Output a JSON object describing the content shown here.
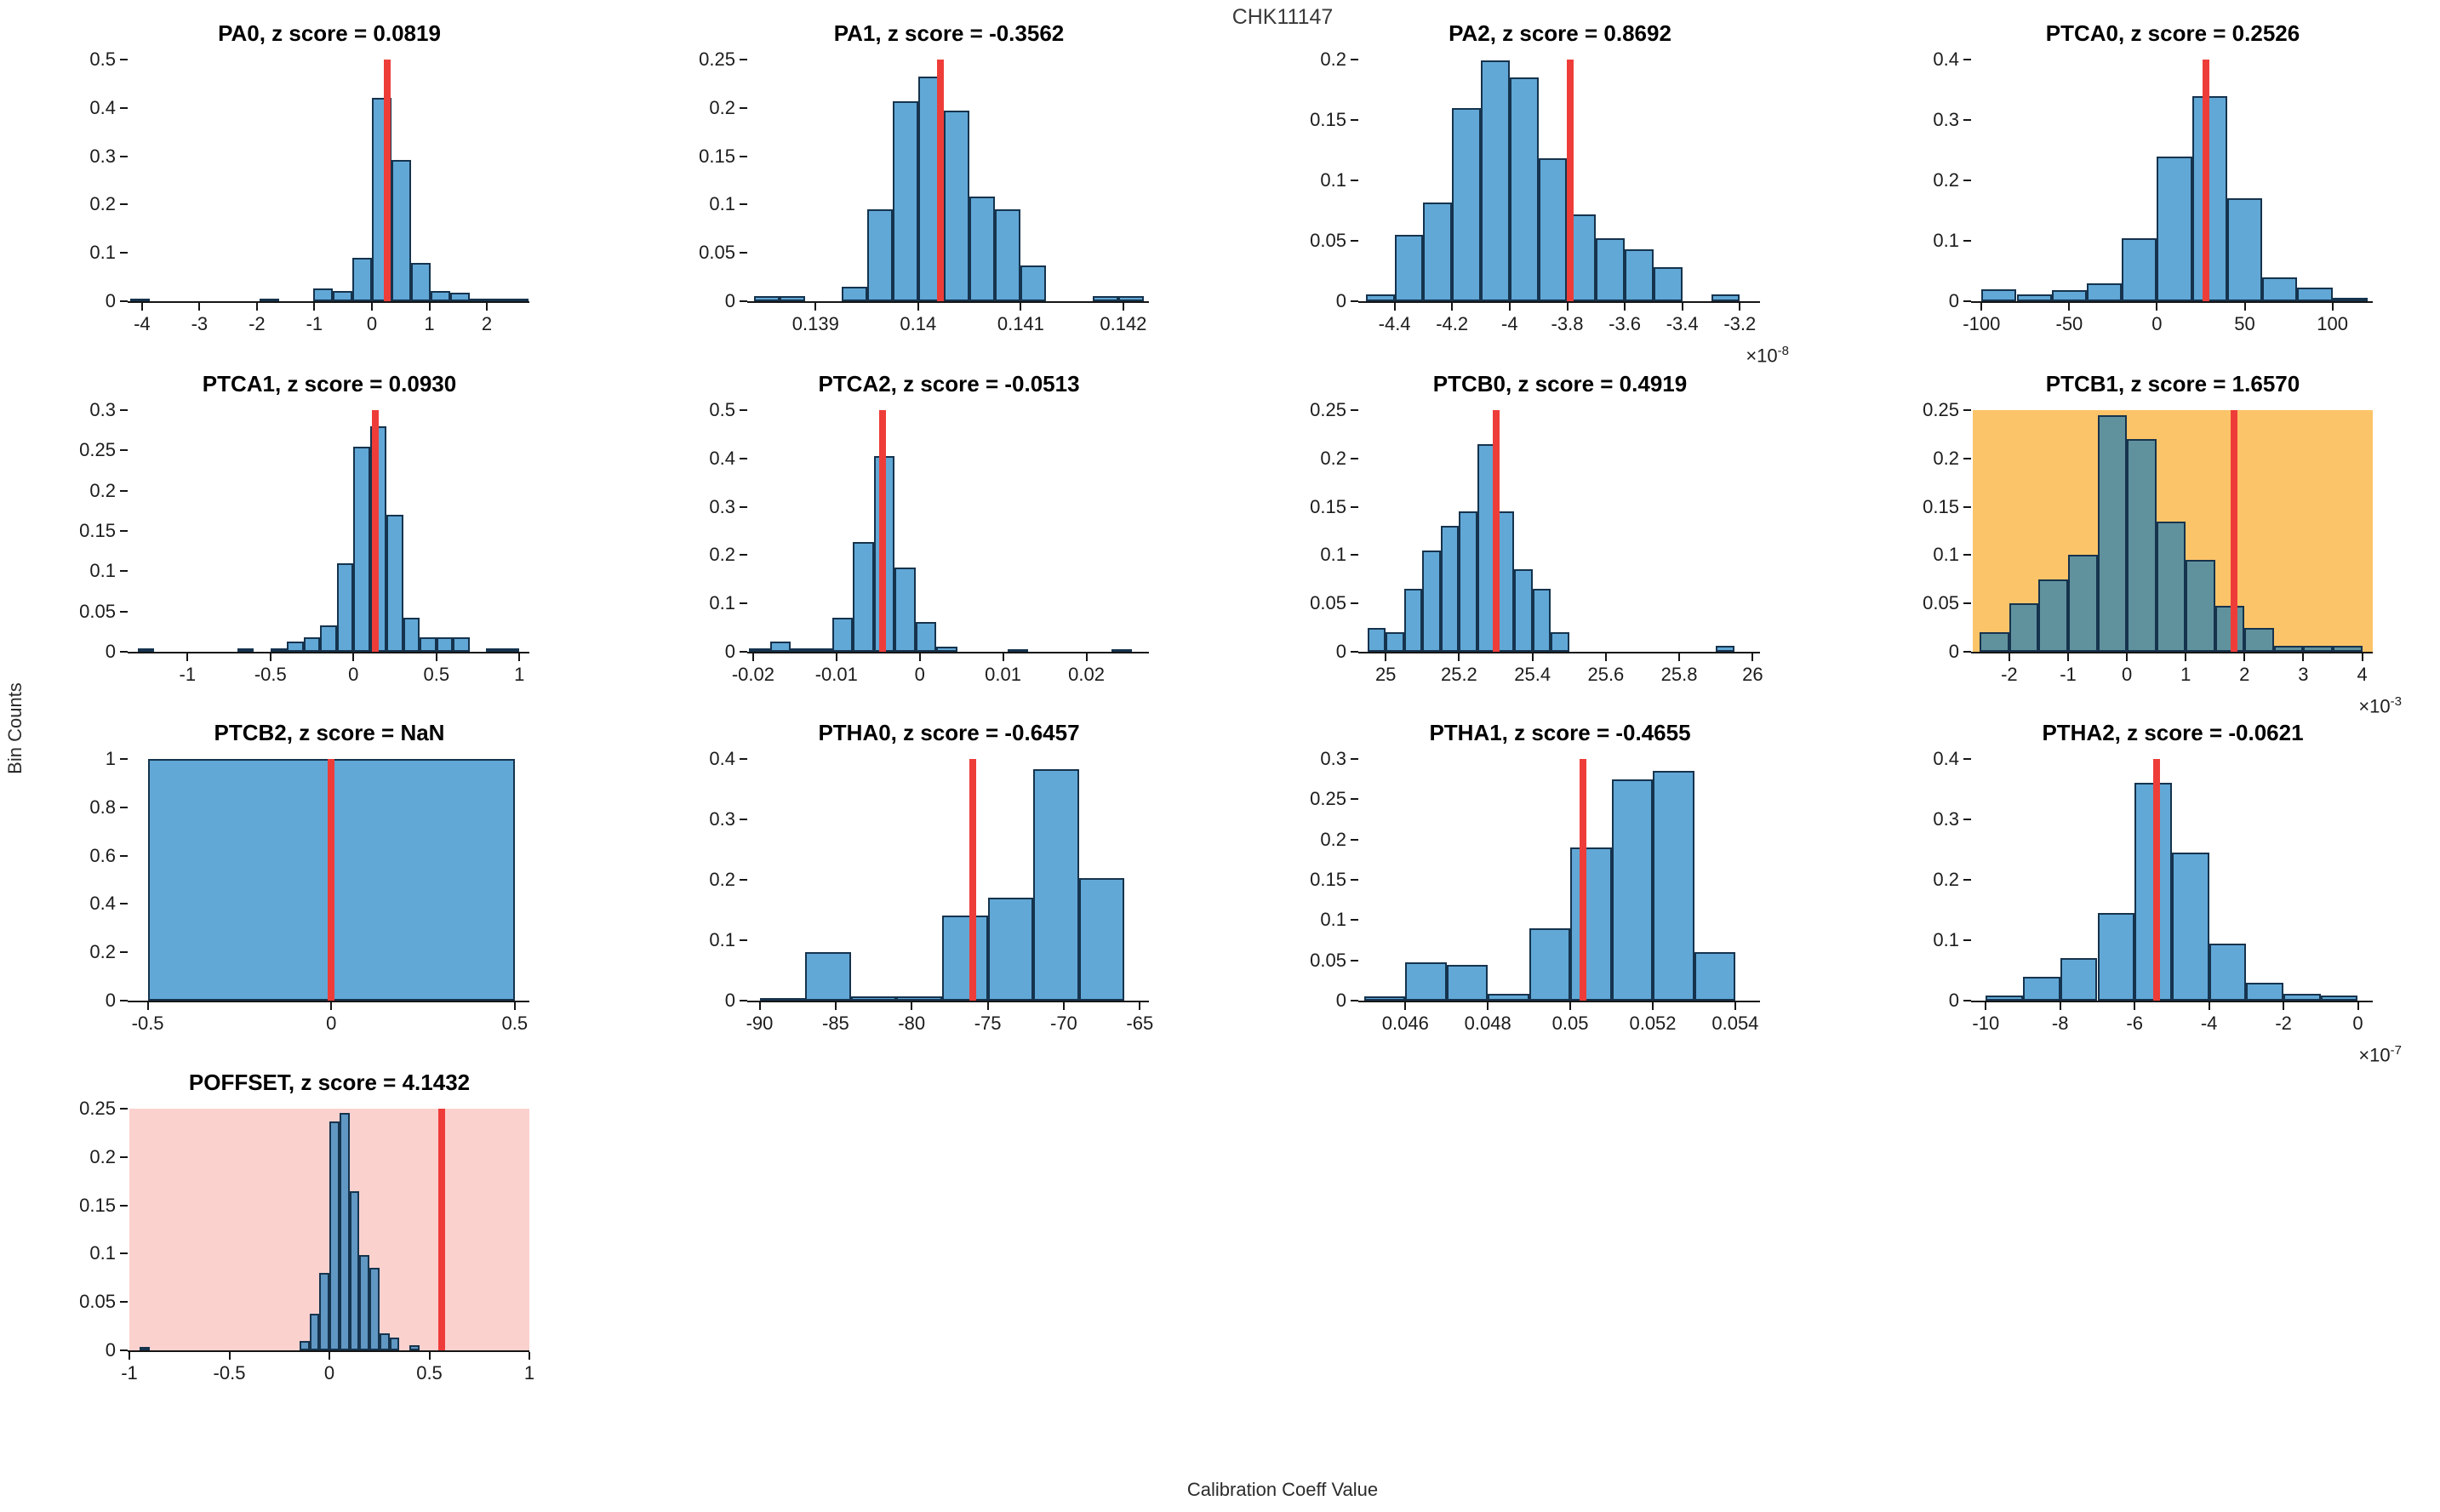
{
  "figure": {
    "title": "CHK11147",
    "xlabel": "Calibration Coeff Value",
    "ylabel": "Bin Counts"
  },
  "colors": {
    "bar_fill": "rgba(0,114,189,0.62)",
    "bar_edge": "#16334d",
    "marker_red": "#ee3d39",
    "warn_background": "#fcc469",
    "alert_background": "#fbd1ce",
    "axis": "#151515",
    "tick_text": "#1c1c1c"
  },
  "chart_data": [
    {
      "type": "histogram",
      "name": "PA0",
      "title": "PA0, z score = 0.0819",
      "z_score": "0.0819",
      "grid": [
        0,
        0
      ],
      "background": null,
      "xlim": [
        -4.22,
        2.74
      ],
      "ylim": [
        0,
        0.5
      ],
      "xticks": [
        -4,
        -3,
        -2,
        -1,
        0,
        1,
        2
      ],
      "xtick_labels": [
        "-4",
        "-3",
        "-2",
        "-1",
        "0",
        "1",
        "2"
      ],
      "yticks": [
        0,
        0.1,
        0.2,
        0.3,
        0.4,
        0.5
      ],
      "ytick_labels": [
        "0",
        "0.1",
        "0.2",
        "0.3",
        "0.4",
        "0.5"
      ],
      "bin_width": 0.34,
      "bars": [
        [
          -4.2,
          0.005
        ],
        [
          -1.95,
          0.005
        ],
        [
          -1.02,
          0.027
        ],
        [
          -0.68,
          0.022
        ],
        [
          -0.34,
          0.09
        ],
        [
          0,
          0.42
        ],
        [
          0.34,
          0.293
        ],
        [
          0.68,
          0.08
        ],
        [
          1.02,
          0.022
        ],
        [
          1.36,
          0.018
        ],
        [
          1.7,
          0.006
        ],
        [
          2.04,
          0.006
        ],
        [
          2.38,
          0.006
        ]
      ],
      "red_line": 0.27,
      "multiplier_base": null,
      "multiplier_exp": null
    },
    {
      "type": "histogram",
      "name": "PA1",
      "title": "PA1, z score = -0.3562",
      "z_score": "-0.3562",
      "grid": [
        0,
        1
      ],
      "background": null,
      "xlim": [
        0.13835,
        0.14225
      ],
      "ylim": [
        0,
        0.25
      ],
      "xticks": [
        0.139,
        0.14,
        0.141,
        0.142
      ],
      "xtick_labels": [
        "0.139",
        "0.14",
        "0.141",
        "0.142"
      ],
      "yticks": [
        0,
        0.05,
        0.1,
        0.15,
        0.2,
        0.25
      ],
      "ytick_labels": [
        "0",
        "0.05",
        "0.1",
        "0.15",
        "0.2",
        "0.25"
      ],
      "bin_width": 0.00025,
      "bars": [
        [
          0.1384,
          0.005
        ],
        [
          0.13865,
          0.005
        ],
        [
          0.13925,
          0.015
        ],
        [
          0.1395,
          0.095
        ],
        [
          0.13975,
          0.207
        ],
        [
          0.14,
          0.232
        ],
        [
          0.14025,
          0.197
        ],
        [
          0.1405,
          0.108
        ],
        [
          0.14075,
          0.095
        ],
        [
          0.141,
          0.037
        ],
        [
          0.1417,
          0.005
        ],
        [
          0.14195,
          0.005
        ]
      ],
      "red_line": 0.14022,
      "multiplier_base": null,
      "multiplier_exp": null
    },
    {
      "type": "histogram",
      "name": "PA2",
      "title": "PA2, z score = 0.8692",
      "z_score": "0.8692",
      "grid": [
        0,
        2
      ],
      "background": null,
      "xlim": [
        -4.52,
        -3.13
      ],
      "ylim": [
        0,
        0.2
      ],
      "xticks": [
        -4.4,
        -4.2,
        -4,
        -3.8,
        -3.6,
        -3.4,
        -3.2
      ],
      "xtick_labels": [
        "-4.4",
        "-4.2",
        "-4",
        "-3.8",
        "-3.6",
        "-3.4",
        "-3.2"
      ],
      "yticks": [
        0,
        0.05,
        0.1,
        0.15,
        0.2
      ],
      "ytick_labels": [
        "0",
        "0.05",
        "0.1",
        "0.15",
        "0.2"
      ],
      "bin_width": 0.1,
      "bars": [
        [
          -4.5,
          0.006
        ],
        [
          -4.4,
          0.055
        ],
        [
          -4.3,
          0.082
        ],
        [
          -4.2,
          0.16
        ],
        [
          -4.1,
          0.199
        ],
        [
          -4.0,
          0.185
        ],
        [
          -3.9,
          0.118
        ],
        [
          -3.8,
          0.072
        ],
        [
          -3.7,
          0.052
        ],
        [
          -3.6,
          0.043
        ],
        [
          -3.5,
          0.028
        ],
        [
          -3.3,
          0.006
        ]
      ],
      "red_line": -3.79,
      "multiplier_base": "×10",
      "multiplier_exp": "-8"
    },
    {
      "type": "histogram",
      "name": "PTCA0",
      "title": "PTCA0, z score = 0.2526",
      "z_score": "0.2526",
      "grid": [
        0,
        3
      ],
      "background": null,
      "xlim": [
        -105,
        123
      ],
      "ylim": [
        0,
        0.4
      ],
      "xticks": [
        -100,
        -50,
        0,
        50,
        100
      ],
      "xtick_labels": [
        "-100",
        "-50",
        "0",
        "50",
        "100"
      ],
      "yticks": [
        0,
        0.1,
        0.2,
        0.3,
        0.4
      ],
      "ytick_labels": [
        "0",
        "0.1",
        "0.2",
        "0.3",
        "0.4"
      ],
      "bin_width": 20,
      "bars": [
        [
          -100,
          0.02
        ],
        [
          -80,
          0.012
        ],
        [
          -60,
          0.018
        ],
        [
          -40,
          0.03
        ],
        [
          -20,
          0.105
        ],
        [
          0,
          0.24
        ],
        [
          20,
          0.34
        ],
        [
          40,
          0.17
        ],
        [
          60,
          0.04
        ],
        [
          80,
          0.022
        ],
        [
          100,
          0.006
        ]
      ],
      "red_line": 28,
      "multiplier_base": null,
      "multiplier_exp": null
    },
    {
      "type": "histogram",
      "name": "PTCA1",
      "title": "PTCA1, z score = 0.0930",
      "z_score": "0.0930",
      "grid": [
        1,
        0
      ],
      "background": null,
      "xlim": [
        -1.35,
        1.06
      ],
      "ylim": [
        0,
        0.3
      ],
      "xticks": [
        -1,
        -0.5,
        0,
        0.5,
        1
      ],
      "xtick_labels": [
        "-1",
        "-0.5",
        "0",
        "0.5",
        "1"
      ],
      "yticks": [
        0,
        0.05,
        0.1,
        0.15,
        0.2,
        0.25,
        0.3
      ],
      "ytick_labels": [
        "0",
        "0.05",
        "0.1",
        "0.15",
        "0.2",
        "0.25",
        "0.3"
      ],
      "bin_width": 0.1,
      "bars": [
        [
          -1.3,
          0.004
        ],
        [
          -0.7,
          0.004
        ],
        [
          -0.5,
          0.004
        ],
        [
          -0.4,
          0.013
        ],
        [
          -0.3,
          0.018
        ],
        [
          -0.2,
          0.033
        ],
        [
          -0.1,
          0.11
        ],
        [
          0,
          0.255
        ],
        [
          0.1,
          0.28
        ],
        [
          0.2,
          0.17
        ],
        [
          0.3,
          0.042
        ],
        [
          0.4,
          0.018
        ],
        [
          0.5,
          0.018
        ],
        [
          0.6,
          0.018
        ],
        [
          0.8,
          0.004
        ],
        [
          0.9,
          0.004
        ]
      ],
      "red_line": 0.13,
      "multiplier_base": null,
      "multiplier_exp": null
    },
    {
      "type": "histogram",
      "name": "PTCA2",
      "title": "PTCA2, z score = -0.0513",
      "z_score": "-0.0513",
      "grid": [
        1,
        1
      ],
      "background": null,
      "xlim": [
        -0.0205,
        0.0275
      ],
      "ylim": [
        0,
        0.5
      ],
      "xticks": [
        -0.02,
        -0.01,
        0,
        0.01,
        0.02
      ],
      "xtick_labels": [
        "-0.02",
        "-0.01",
        "0",
        "0.01",
        "0.02"
      ],
      "yticks": [
        0,
        0.1,
        0.2,
        0.3,
        0.4,
        0.5
      ],
      "ytick_labels": [
        "0",
        "0.1",
        "0.2",
        "0.3",
        "0.4",
        "0.5"
      ],
      "bin_width": 0.0025,
      "bars": [
        [
          -0.0205,
          0.008
        ],
        [
          -0.018,
          0.022
        ],
        [
          -0.0155,
          0.008
        ],
        [
          -0.013,
          0.008
        ],
        [
          -0.0105,
          0.07
        ],
        [
          -0.008,
          0.228
        ],
        [
          -0.0055,
          0.405
        ],
        [
          -0.003,
          0.175
        ],
        [
          -0.0005,
          0.062
        ],
        [
          0.002,
          0.01
        ],
        [
          0.0105,
          0.005
        ],
        [
          0.023,
          0.005
        ]
      ],
      "red_line": -0.0045,
      "multiplier_base": null,
      "multiplier_exp": null
    },
    {
      "type": "histogram",
      "name": "PTCB0",
      "title": "PTCB0, z score = 0.4919",
      "z_score": "0.4919",
      "grid": [
        1,
        2
      ],
      "background": null,
      "xlim": [
        24.93,
        26.02
      ],
      "ylim": [
        0,
        0.25
      ],
      "xticks": [
        25,
        25.2,
        25.4,
        25.6,
        25.8,
        26
      ],
      "xtick_labels": [
        "25",
        "25.2",
        "25.4",
        "25.6",
        "25.8",
        "26"
      ],
      "yticks": [
        0,
        0.05,
        0.1,
        0.15,
        0.2,
        0.25
      ],
      "ytick_labels": [
        "0",
        "0.05",
        "0.1",
        "0.15",
        "0.2",
        "0.25"
      ],
      "bin_width": 0.05,
      "bars": [
        [
          24.95,
          0.025
        ],
        [
          25.0,
          0.02
        ],
        [
          25.05,
          0.065
        ],
        [
          25.1,
          0.105
        ],
        [
          25.15,
          0.13
        ],
        [
          25.2,
          0.145
        ],
        [
          25.25,
          0.215
        ],
        [
          25.3,
          0.145
        ],
        [
          25.35,
          0.085
        ],
        [
          25.4,
          0.065
        ],
        [
          25.45,
          0.02
        ],
        [
          25.9,
          0.006
        ]
      ],
      "red_line": 25.302,
      "multiplier_base": null,
      "multiplier_exp": null
    },
    {
      "type": "histogram",
      "name": "PTCB1",
      "title": "PTCB1, z score = 1.6570",
      "z_score": "1.6570",
      "grid": [
        1,
        3
      ],
      "background": "#fcc469",
      "xlim": [
        -2.62,
        4.18
      ],
      "ylim": [
        0,
        0.25
      ],
      "xticks": [
        -2,
        -1,
        0,
        1,
        2,
        3,
        4
      ],
      "xtick_labels": [
        "-2",
        "-1",
        "0",
        "1",
        "2",
        "3",
        "4"
      ],
      "yticks": [
        0,
        0.05,
        0.1,
        0.15,
        0.2,
        0.25
      ],
      "ytick_labels": [
        "0",
        "0.05",
        "0.1",
        "0.15",
        "0.2",
        "0.25"
      ],
      "bin_width": 0.5,
      "bars": [
        [
          -2.5,
          0.02
        ],
        [
          -2,
          0.05
        ],
        [
          -1.5,
          0.075
        ],
        [
          -1,
          0.1
        ],
        [
          -0.5,
          0.245
        ],
        [
          0,
          0.22
        ],
        [
          0.5,
          0.135
        ],
        [
          1,
          0.095
        ],
        [
          1.5,
          0.048
        ],
        [
          2,
          0.025
        ],
        [
          2.5,
          0.006
        ],
        [
          3,
          0.006
        ],
        [
          3.5,
          0.006
        ]
      ],
      "red_line": 1.82,
      "multiplier_base": "×10",
      "multiplier_exp": "-3"
    },
    {
      "type": "histogram",
      "name": "PTCB2",
      "title": "PTCB2, z score = NaN",
      "z_score": "NaN",
      "grid": [
        2,
        0
      ],
      "background": null,
      "xlim": [
        -0.55,
        0.54
      ],
      "ylim": [
        0,
        1
      ],
      "xticks": [
        -0.5,
        0,
        0.5
      ],
      "xtick_labels": [
        "-0.5",
        "0",
        "0.5"
      ],
      "yticks": [
        0,
        0.2,
        0.4,
        0.6,
        0.8,
        1
      ],
      "ytick_labels": [
        "0",
        "0.2",
        "0.4",
        "0.6",
        "0.8",
        "1"
      ],
      "bin_width": 1.0,
      "bars": [
        [
          -0.5,
          1
        ]
      ],
      "red_line": 0,
      "multiplier_base": null,
      "multiplier_exp": null
    },
    {
      "type": "histogram",
      "name": "PTHA0",
      "title": "PTHA0, z score = -0.6457",
      "z_score": "-0.6457",
      "grid": [
        2,
        1
      ],
      "background": null,
      "xlim": [
        -90.7,
        -64.4
      ],
      "ylim": [
        0,
        0.4
      ],
      "xticks": [
        -90,
        -85,
        -80,
        -75,
        -70,
        -65
      ],
      "xtick_labels": [
        "-90",
        "-85",
        "-80",
        "-75",
        "-70",
        "-65"
      ],
      "yticks": [
        0,
        0.1,
        0.2,
        0.3,
        0.4
      ],
      "ytick_labels": [
        "0",
        "0.1",
        "0.2",
        "0.3",
        "0.4"
      ],
      "bin_width": 3,
      "bars": [
        [
          -90,
          0.004
        ],
        [
          -87,
          0.08
        ],
        [
          -84,
          0.007
        ],
        [
          -81,
          0.007
        ],
        [
          -78,
          0.141
        ],
        [
          -75,
          0.17
        ],
        [
          -72,
          0.383
        ],
        [
          -69,
          0.203
        ]
      ],
      "red_line": -76,
      "multiplier_base": null,
      "multiplier_exp": null
    },
    {
      "type": "histogram",
      "name": "PTHA1",
      "title": "PTHA1, z score = -0.4655",
      "z_score": "-0.4655",
      "grid": [
        2,
        2
      ],
      "background": null,
      "xlim": [
        0.0449,
        0.0546
      ],
      "ylim": [
        0,
        0.3
      ],
      "xticks": [
        0.046,
        0.048,
        0.05,
        0.052,
        0.054
      ],
      "xtick_labels": [
        "0.046",
        "0.048",
        "0.05",
        "0.052",
        "0.054"
      ],
      "yticks": [
        0,
        0.05,
        0.1,
        0.15,
        0.2,
        0.25,
        0.3
      ],
      "ytick_labels": [
        "0",
        "0.05",
        "0.1",
        "0.15",
        "0.2",
        "0.25",
        "0.3"
      ],
      "bin_width": 0.001,
      "bars": [
        [
          0.045,
          0.005
        ],
        [
          0.046,
          0.048
        ],
        [
          0.047,
          0.044
        ],
        [
          0.048,
          0.008
        ],
        [
          0.049,
          0.09
        ],
        [
          0.05,
          0.19
        ],
        [
          0.051,
          0.275
        ],
        [
          0.052,
          0.285
        ],
        [
          0.053,
          0.06
        ]
      ],
      "red_line": 0.0503,
      "multiplier_base": null,
      "multiplier_exp": null
    },
    {
      "type": "histogram",
      "name": "PTHA2",
      "title": "PTHA2, z score = -0.0621",
      "z_score": "-0.0621",
      "grid": [
        2,
        3
      ],
      "background": null,
      "xlim": [
        -10.35,
        0.4
      ],
      "ylim": [
        0,
        0.4
      ],
      "xticks": [
        -10,
        -8,
        -6,
        -4,
        -2,
        0
      ],
      "xtick_labels": [
        "-10",
        "-8",
        "-6",
        "-4",
        "-2",
        "0"
      ],
      "yticks": [
        0,
        0.1,
        0.2,
        0.3,
        0.4
      ],
      "ytick_labels": [
        "0",
        "0.1",
        "0.2",
        "0.3",
        "0.4"
      ],
      "bin_width": 1,
      "bars": [
        [
          -10,
          0.008
        ],
        [
          -9,
          0.04
        ],
        [
          -8,
          0.07
        ],
        [
          -7,
          0.145
        ],
        [
          -6,
          0.36
        ],
        [
          -5,
          0.245
        ],
        [
          -4,
          0.095
        ],
        [
          -3,
          0.03
        ],
        [
          -2,
          0.012
        ],
        [
          -1,
          0.008
        ]
      ],
      "red_line": -5.4,
      "multiplier_base": "×10",
      "multiplier_exp": "-7"
    },
    {
      "type": "histogram",
      "name": "POFFSET",
      "title": "POFFSET, z score = 4.1432",
      "z_score": "4.1432",
      "grid": [
        3,
        0
      ],
      "background": "#fbd1ce",
      "xlim": [
        -1.0,
        1.0
      ],
      "ylim": [
        0,
        0.25
      ],
      "xticks": [
        -1,
        -0.5,
        0,
        0.5,
        1
      ],
      "xtick_labels": [
        "-1",
        "-0.5",
        "0",
        "0.5",
        "1"
      ],
      "yticks": [
        0,
        0.05,
        0.1,
        0.15,
        0.2,
        0.25
      ],
      "ytick_labels": [
        "0",
        "0.05",
        "0.1",
        "0.15",
        "0.2",
        "0.25"
      ],
      "bin_width": 0.05,
      "bars": [
        [
          -0.95,
          0.004
        ],
        [
          -0.15,
          0.01
        ],
        [
          -0.1,
          0.038
        ],
        [
          -0.05,
          0.08
        ],
        [
          0,
          0.237
        ],
        [
          0.05,
          0.246
        ],
        [
          0.1,
          0.165
        ],
        [
          0.15,
          0.099
        ],
        [
          0.2,
          0.085
        ],
        [
          0.25,
          0.018
        ],
        [
          0.3,
          0.013
        ],
        [
          0.4,
          0.005
        ]
      ],
      "red_line": 0.56,
      "multiplier_base": null,
      "multiplier_exp": null
    }
  ]
}
